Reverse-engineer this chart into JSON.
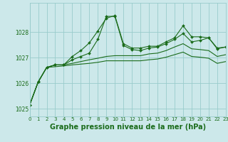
{
  "bg_color": "#cce8ea",
  "grid_color": "#99cccc",
  "line_color": "#1a6b1a",
  "marker": "D",
  "markersize": 2.0,
  "linewidth": 0.8,
  "title": "Graphe pression niveau de la mer (hPa)",
  "title_fontsize": 7,
  "xlim": [
    0,
    23
  ],
  "ylim": [
    1024.7,
    1029.15
  ],
  "yticks": [
    1025,
    1026,
    1027,
    1028
  ],
  "xticks": [
    0,
    1,
    2,
    3,
    4,
    5,
    6,
    7,
    8,
    9,
    10,
    11,
    12,
    13,
    14,
    15,
    16,
    17,
    18,
    19,
    20,
    21,
    22,
    23
  ],
  "series": [
    {
      "y": [
        1025.15,
        1026.05,
        1026.62,
        1026.72,
        1026.72,
        1027.05,
        1027.28,
        1027.58,
        1028.05,
        1028.55,
        1028.65,
        1027.55,
        1027.38,
        1027.38,
        1027.45,
        1027.45,
        1027.62,
        1027.78,
        1028.25,
        1027.82,
        1027.82,
        1027.78,
        1027.38,
        1027.42
      ],
      "marker": true
    },
    {
      "y": [
        1025.15,
        1026.05,
        1026.62,
        1026.72,
        1026.72,
        1026.92,
        1027.05,
        1027.18,
        1027.72,
        1028.62,
        1028.62,
        1027.48,
        1027.32,
        1027.28,
        1027.38,
        1027.42,
        1027.55,
        1027.72,
        1027.95,
        1027.62,
        1027.68,
        1027.78,
        1027.35,
        1027.42
      ],
      "marker": true
    },
    {
      "y": [
        1025.15,
        1026.05,
        1026.62,
        1026.72,
        1026.72,
        1026.78,
        1026.85,
        1026.92,
        1026.98,
        1027.05,
        1027.08,
        1027.08,
        1027.08,
        1027.08,
        1027.15,
        1027.18,
        1027.28,
        1027.42,
        1027.55,
        1027.35,
        1027.32,
        1027.28,
        1027.05,
        1027.12
      ],
      "marker": false
    },
    {
      "y": [
        1025.15,
        1026.05,
        1026.62,
        1026.65,
        1026.68,
        1026.72,
        1026.75,
        1026.78,
        1026.82,
        1026.88,
        1026.88,
        1026.88,
        1026.88,
        1026.88,
        1026.92,
        1026.95,
        1027.02,
        1027.12,
        1027.22,
        1027.05,
        1027.02,
        1026.98,
        1026.78,
        1026.85
      ],
      "marker": false
    }
  ]
}
